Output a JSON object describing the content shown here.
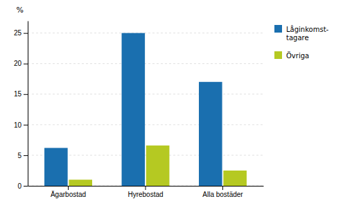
{
  "chart_data": {
    "type": "bar",
    "categories": [
      "Ägarbostad",
      "Hyrebostad",
      "Alla bostäder"
    ],
    "series": [
      {
        "name": "Låginkomst-\ntagare",
        "color": "#1a6faf",
        "values": [
          6.2,
          25.0,
          17.0
        ]
      },
      {
        "name": "Övriga",
        "color": "#b5c922",
        "values": [
          1.0,
          6.6,
          2.5
        ]
      }
    ],
    "ylabel": "%",
    "ylim": [
      0,
      27
    ],
    "yticks": [
      0,
      5,
      10,
      15,
      20,
      25
    ],
    "grid": true,
    "legend": "right"
  }
}
